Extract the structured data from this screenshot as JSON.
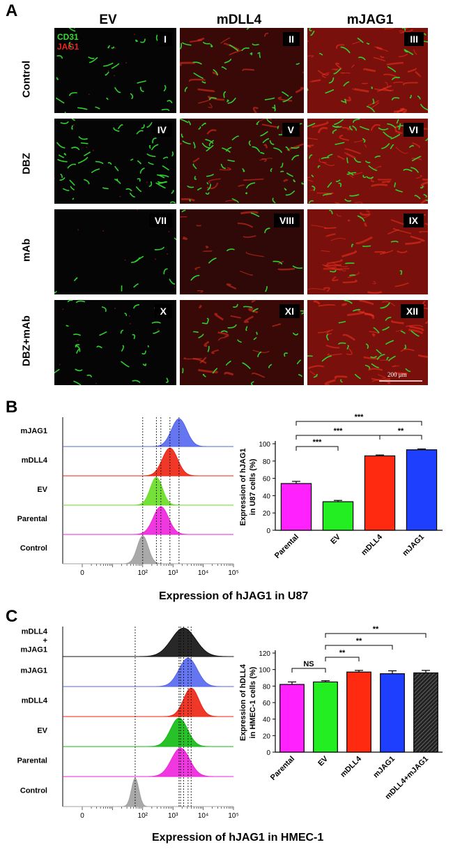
{
  "panel_a": {
    "letter": "A",
    "columns": [
      "EV",
      "mDLL4",
      "mJAG1"
    ],
    "rows": [
      "Control",
      "DBZ",
      "mAb",
      "DBZ+mAb"
    ],
    "tiles": [
      "I",
      "II",
      "III",
      "IV",
      "V",
      "VI",
      "VII",
      "VIII",
      "IX",
      "X",
      "XI",
      "XII"
    ],
    "legend": {
      "cd31": "CD31",
      "jag1": "JAG1"
    },
    "scale_bar": "200 μm",
    "colors": {
      "cd31": "#2fd12f",
      "jag1": "#d81a10",
      "background": "#050505"
    }
  },
  "panel_b": {
    "letter": "B",
    "histogram": {
      "tracks": [
        "mJAG1",
        "mDLL4",
        "EV",
        "Parental",
        "Control"
      ],
      "colors": [
        "#5566ee",
        "#ee2211",
        "#66dd22",
        "#ee22dd",
        "#a0a0a0"
      ],
      "tick_labels": [
        "0",
        "10²",
        "10³",
        "10⁴",
        "10⁵"
      ],
      "xlabel": "Expression of hJAG1 in U87"
    },
    "bar_chart": {
      "ylabel_line1": "Expression of hJAG1",
      "ylabel_line2": "in U87 cells (%)",
      "significance": [
        "***",
        "***",
        "***",
        "**"
      ]
    }
  },
  "panel_c": {
    "letter": "C",
    "histogram": {
      "tracks": [
        "mDLL4\n+\nmJAG1",
        "mJAG1",
        "mDLL4",
        "EV",
        "Parental",
        "Control"
      ],
      "track_labels": [
        [
          "mDLL4",
          "+",
          "mJAG1"
        ],
        [
          "mJAG1"
        ],
        [
          "mDLL4"
        ],
        [
          "EV"
        ],
        [
          "Parental"
        ],
        [
          "Control"
        ]
      ],
      "colors": [
        "#111111",
        "#5566ee",
        "#ee2211",
        "#11bb11",
        "#ee22dd",
        "#a0a0a0"
      ],
      "tick_labels": [
        "0",
        "10²",
        "10³",
        "10⁴",
        "10⁵"
      ],
      "xlabel": "Expression of hJAG1 in HMEC-1"
    },
    "bar_chart": {
      "ylabel_line1": "Expression of hDLL4",
      "ylabel_line2": "in HMEC-1 cells (%)",
      "significance": [
        "NS",
        "**",
        "**",
        "**"
      ]
    }
  },
  "chart_data": [
    {
      "type": "bar",
      "title": "",
      "categories": [
        "Parental",
        "EV",
        "mDLL4",
        "mJAG1"
      ],
      "values": [
        54,
        33,
        86,
        93
      ],
      "errors": [
        2.5,
        1.5,
        1,
        1
      ],
      "colors": [
        "#ff22ff",
        "#22ee22",
        "#ff2a10",
        "#1f3fff"
      ],
      "xlabel": "",
      "ylabel": "Expression of hJAG1 in U87 cells (%)",
      "ylim": [
        0,
        100
      ],
      "yticks": [
        0,
        20,
        40,
        60,
        80,
        100
      ],
      "comparisons": [
        {
          "from": "Parental",
          "to": "EV",
          "label": "***"
        },
        {
          "from": "Parental",
          "to": "mDLL4",
          "label": "***"
        },
        {
          "from": "Parental",
          "to": "mJAG1",
          "label": "***"
        },
        {
          "from": "mDLL4",
          "to": "mJAG1",
          "label": "**"
        }
      ]
    },
    {
      "type": "bar",
      "title": "",
      "categories": [
        "Parental",
        "EV",
        "mDLL4",
        "mJAG1",
        "mDLL4+mJAG1"
      ],
      "values": [
        82,
        85,
        97,
        95,
        96
      ],
      "errors": [
        3,
        1.5,
        2,
        3.5,
        3
      ],
      "colors": [
        "#ff22ff",
        "#22ee22",
        "#ff2a10",
        "#1f3fff",
        "#555555"
      ],
      "xlabel": "",
      "ylabel": "Expression of hDLL4 in HMEC-1 cells (%)",
      "ylim": [
        0,
        120
      ],
      "yticks": [
        0,
        20,
        40,
        60,
        80,
        100,
        120
      ],
      "comparisons": [
        {
          "from": "Parental",
          "to": "EV",
          "label": "NS"
        },
        {
          "from": "EV",
          "to": "mDLL4",
          "label": "**"
        },
        {
          "from": "EV",
          "to": "mJAG1",
          "label": "**"
        },
        {
          "from": "EV",
          "to": "mDLL4+mJAG1",
          "label": "**"
        }
      ]
    }
  ]
}
